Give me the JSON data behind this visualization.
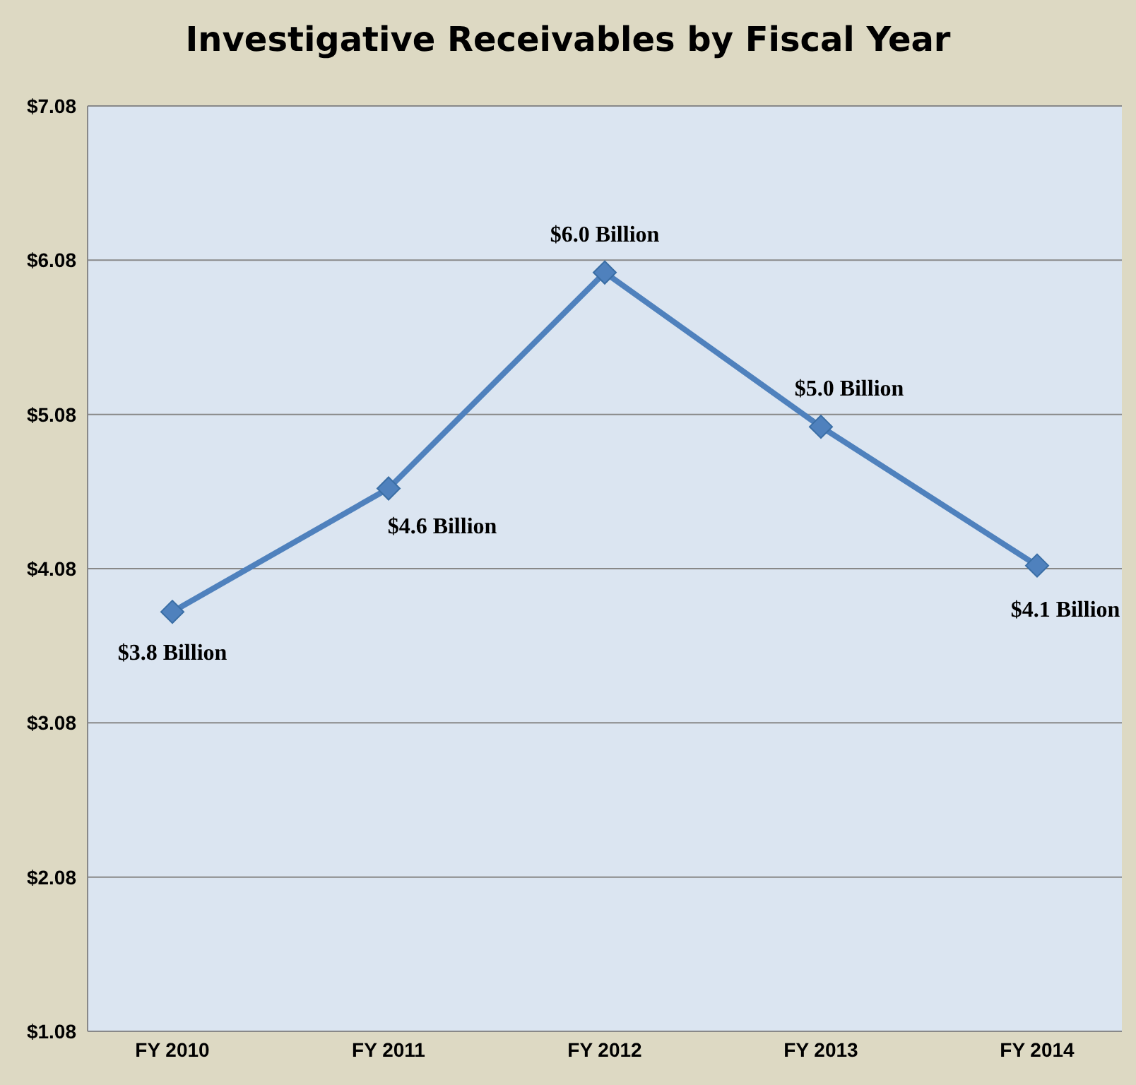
{
  "chart_data": {
    "type": "line",
    "title": "Investigative Receivables by Fiscal Year",
    "categories": [
      "FY 2010",
      "FY 2011",
      "FY 2012",
      "FY 2013",
      "FY 2014"
    ],
    "series": [
      {
        "color": "#4f81bd",
        "values": [
          3.8,
          4.6,
          6.0,
          5.0,
          4.1
        ],
        "value_labels": [
          "$3.8 Billion",
          "$4.6 Billion",
          "$6.0 Billion",
          "$5.0 Billion",
          "$4.1 Billion"
        ]
      }
    ],
    "ylim": [
      1.08,
      7.08
    ],
    "yticks": [
      {
        "value": 1.08,
        "label": "$1.08"
      },
      {
        "value": 2.08,
        "label": "$2.08"
      },
      {
        "value": 3.08,
        "label": "$3.08"
      },
      {
        "value": 4.08,
        "label": "$4.08"
      },
      {
        "value": 5.08,
        "label": "$5.08"
      },
      {
        "value": 6.08,
        "label": "$6.08"
      },
      {
        "value": 7.08,
        "label": "$7.08"
      }
    ],
    "grid": "y",
    "marker": "diamond",
    "line_style": "solid"
  }
}
